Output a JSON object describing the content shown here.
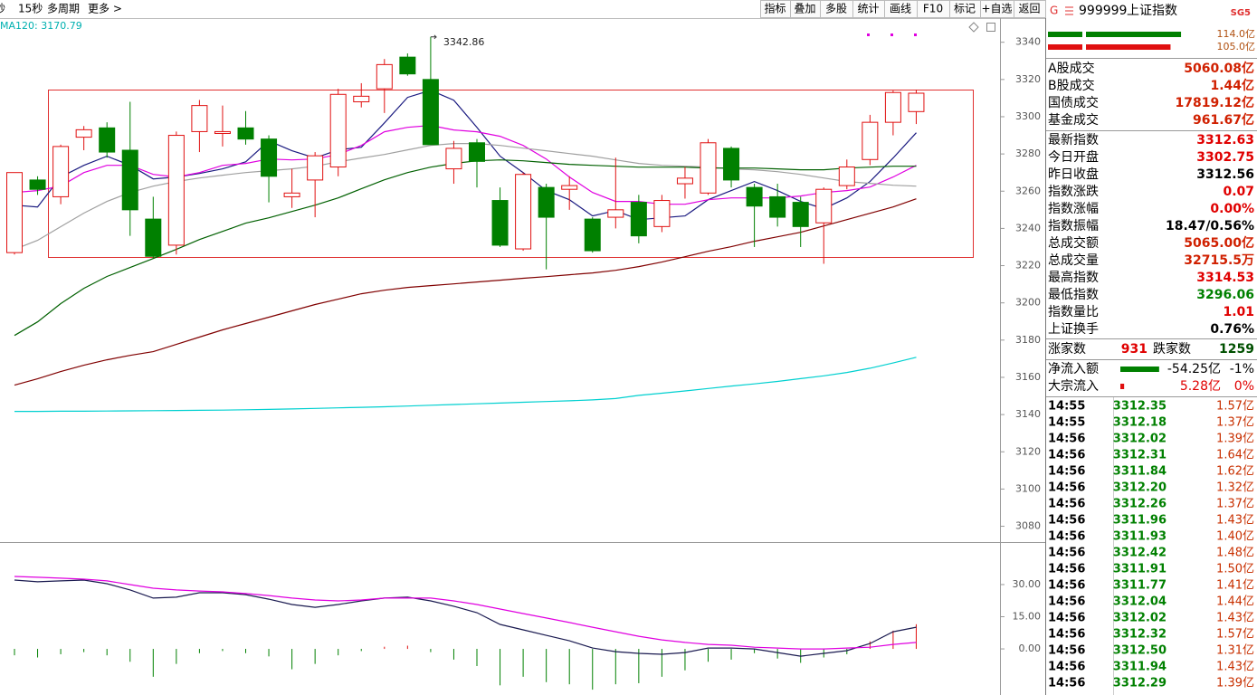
{
  "chart_data": [
    {
      "type": "candlestick",
      "ma_label": "MA120: 3170.79",
      "ylim": [
        3072,
        3352
      ],
      "yticks": [
        3080,
        3100,
        3120,
        3140,
        3160,
        3180,
        3200,
        3220,
        3240,
        3260,
        3280,
        3300,
        3320,
        3340
      ],
      "grid": false,
      "up_color": "#e01010",
      "down_color": "#008000",
      "open": [
        3227,
        3266,
        3257,
        3289,
        3294,
        3282,
        3245,
        3231,
        3292,
        3291,
        3294,
        3288,
        3257,
        3266,
        3273,
        3308,
        3315,
        3332,
        3320,
        3272,
        3286,
        3255,
        3229,
        3262,
        3261,
        3245,
        3246,
        3254,
        3241,
        3264,
        3259,
        3283,
        3262,
        3257,
        3254,
        3243,
        3263,
        3277,
        3297,
        3302.75
      ],
      "high": [
        3270,
        3268,
        3285,
        3295,
        3297,
        3308,
        3257,
        3292,
        3309,
        3306,
        3303,
        3290,
        3272,
        3281,
        3315,
        3318,
        3331,
        3334,
        3342.86,
        3287,
        3288,
        3262,
        3270,
        3264,
        3268,
        3246,
        3278,
        3258,
        3258,
        3273,
        3288,
        3284,
        3264,
        3264,
        3257,
        3262,
        3277,
        3301,
        3314,
        3314.53
      ],
      "low": [
        3226,
        3258,
        3253,
        3282,
        3278,
        3236,
        3224,
        3226,
        3281,
        3284,
        3285,
        3254,
        3251,
        3246,
        3268,
        3305,
        3302,
        3322,
        3285,
        3264,
        3262,
        3230,
        3228,
        3218,
        3250,
        3227,
        3240,
        3232,
        3238,
        3256,
        3258,
        3262,
        3230,
        3241,
        3230,
        3221,
        3261,
        3274,
        3290,
        3296.06
      ],
      "close": [
        3270,
        3261,
        3284,
        3293,
        3281,
        3250,
        3225,
        3290,
        3306,
        3292,
        3288,
        3268,
        3259,
        3279,
        3312,
        3311,
        3328,
        3323,
        3285,
        3283,
        3276,
        3231,
        3269,
        3246,
        3263,
        3228,
        3250,
        3236,
        3255,
        3267,
        3286,
        3266,
        3252,
        3246,
        3241,
        3261,
        3273,
        3297,
        3313,
        3312.63
      ],
      "lines": [
        {
          "color": "#1a1a80",
          "values": [
            3252.5,
            3251.5,
            3267.6,
            3273.9,
            3278.8,
            3273.9,
            3266.6,
            3267.6,
            3269.5,
            3272,
            3275.8,
            3287,
            3281.7,
            3277.8,
            3282.2,
            3283.6,
            3296.7,
            3310.4,
            3314.2,
            3308.9,
            3294.3,
            3278.8,
            3270,
            3260.3,
            3255.4,
            3246.7,
            3249.6,
            3244.7,
            3245.7,
            3246.7,
            3255.4,
            3260.3,
            3265.2,
            3260.3,
            3254.5,
            3250.6,
            3256.4,
            3265.2,
            3277.8,
            3291.4
          ]
        },
        {
          "color": "#e000e0",
          "values": [
            3259.3,
            3260.3,
            3262.7,
            3270,
            3273.9,
            3273.9,
            3269,
            3267.6,
            3270,
            3273.9,
            3274.9,
            3277.3,
            3276.8,
            3277.3,
            3279.7,
            3284.6,
            3291.9,
            3294.3,
            3295.3,
            3292.9,
            3291.9,
            3289.5,
            3284.6,
            3277.3,
            3267.6,
            3259.3,
            3254.5,
            3254.5,
            3253,
            3253,
            3255.4,
            3256.4,
            3256.4,
            3256.4,
            3257.4,
            3259.3,
            3260.3,
            3262.2,
            3267.6,
            3273.9
          ]
        },
        {
          "color": "#a0a0a0",
          "values": [
            3228.7,
            3233.6,
            3240.9,
            3248.2,
            3254.5,
            3259.3,
            3262.7,
            3265.2,
            3267.1,
            3268.6,
            3270,
            3271,
            3272,
            3273.4,
            3275.8,
            3277.8,
            3279.7,
            3282.2,
            3284.6,
            3285.6,
            3285.6,
            3284.6,
            3283.1,
            3281.7,
            3280.2,
            3278.8,
            3276.8,
            3274.9,
            3273.9,
            3273.4,
            3272.9,
            3272,
            3271.5,
            3270.5,
            3269,
            3267.1,
            3265.2,
            3264.2,
            3263.2,
            3262.7
          ]
        },
        {
          "color": "#006000",
          "values": [
            3182.5,
            3189.8,
            3199.6,
            3207.8,
            3214.2,
            3219,
            3223.8,
            3228.7,
            3234,
            3238.4,
            3242.8,
            3245.7,
            3249.1,
            3252.5,
            3256.4,
            3261.3,
            3266.1,
            3270,
            3272.9,
            3274.9,
            3276.3,
            3276.8,
            3276.3,
            3275.4,
            3274.4,
            3273.9,
            3273.4,
            3272.9,
            3272.9,
            3272.9,
            3272.4,
            3272.4,
            3272.4,
            3272,
            3271.5,
            3271.5,
            3272.4,
            3272.9,
            3273.4,
            3273.4
          ]
        },
        {
          "color": "#800000",
          "values": [
            3155.8,
            3159.2,
            3163.1,
            3166.5,
            3169.4,
            3171.8,
            3173.8,
            3177.7,
            3181.6,
            3185.5,
            3188.9,
            3192.3,
            3195.7,
            3199.1,
            3202,
            3204.9,
            3206.8,
            3208.3,
            3209.3,
            3210.2,
            3211.2,
            3212.2,
            3213.2,
            3214.1,
            3215.1,
            3216.1,
            3217.5,
            3219.5,
            3221.9,
            3224.8,
            3227.7,
            3230.2,
            3233.1,
            3235.5,
            3237.9,
            3241.3,
            3244.7,
            3248.1,
            3251.5,
            3255.9
          ]
        },
        {
          "color": "#00d0d0",
          "values": [
            3141.7,
            3141.7,
            3141.8,
            3141.8,
            3141.9,
            3142,
            3142.1,
            3142.2,
            3142.3,
            3142.4,
            3142.6,
            3142.8,
            3143,
            3143.3,
            3143.6,
            3143.9,
            3144.2,
            3144.6,
            3145,
            3145.4,
            3145.8,
            3146.2,
            3146.6,
            3147,
            3147.4,
            3147.9,
            3148.6,
            3150.3,
            3151.5,
            3152.7,
            3154,
            3155.3,
            3156.5,
            3157.8,
            3159.3,
            3160.8,
            3162.6,
            3164.9,
            3167.7,
            3170.79
          ]
        }
      ]
    },
    {
      "type": "macd",
      "ylim": [
        -21.5,
        49.4
      ],
      "yticks": [
        {
          "value": 0,
          "label": "0.00"
        },
        {
          "value": 15,
          "label": "15.00"
        },
        {
          "value": 30,
          "label": "30.00"
        }
      ],
      "up_color": "#e01010",
      "down_color": "#008000",
      "lines": [
        {
          "color": "#1a1a50",
          "values": [
            32.1,
            31.3,
            31.7,
            32.1,
            30.4,
            27.5,
            23.7,
            24.1,
            26.2,
            26.2,
            25.3,
            23.2,
            20.7,
            19.4,
            20.7,
            22.4,
            23.7,
            24.1,
            22.4,
            19.9,
            16.9,
            11.4,
            8.9,
            6.3,
            3.8,
            0.4,
            -1.3,
            -2.1,
            -2.5,
            -1.7,
            0.4,
            0.4,
            0,
            -1.7,
            -3.4,
            -2.1,
            -0.8,
            2.5,
            8,
            10.1
          ]
        },
        {
          "color": "#e000e0",
          "values": [
            33.8,
            33.4,
            33,
            32.5,
            31.7,
            30,
            28.3,
            27.5,
            27,
            26.6,
            25.8,
            24.9,
            23.7,
            22.8,
            22.4,
            22.8,
            23.7,
            23.7,
            23.7,
            22.4,
            20.7,
            18.6,
            16.5,
            14.4,
            12.3,
            10.1,
            8,
            5.9,
            4.2,
            3,
            2.1,
            1.7,
            0.8,
            0.4,
            0,
            0,
            0.4,
            0.8,
            2.1,
            3
          ]
        }
      ],
      "bars": [
        -3,
        -4,
        -2.5,
        -1.5,
        -3,
        -6,
        -13,
        -7,
        -2,
        -1,
        -2,
        -3.5,
        -9.5,
        -7,
        -3,
        -1,
        1,
        1.5,
        -1.5,
        -5,
        -8,
        -17,
        -13,
        -15.5,
        -16.5,
        -19,
        -16.5,
        -16,
        -13,
        -10,
        -6,
        -5,
        -2,
        -4.5,
        -6.5,
        -4,
        -2.5,
        3.5,
        8.5,
        11.5
      ]
    }
  ],
  "toolbar": {
    "left": [
      "秒",
      "15秒",
      "多周期",
      "更多 >"
    ],
    "right": [
      "指标",
      "叠加",
      "多股",
      "统计",
      "画线",
      "F10",
      "标记",
      "+自选",
      "返回"
    ]
  },
  "panel": {
    "badge": "G",
    "code": "999999",
    "name": "上证指数",
    "tag": "SG5",
    "flow_bars": [
      {
        "value": 114.0,
        "label": "114.0亿",
        "color": "#008000"
      },
      {
        "value": 105.0,
        "label": "105.0亿",
        "color": "#e01010"
      }
    ],
    "stats": [
      {
        "label": "A股成交",
        "value": "5060.08亿",
        "color": "#d02000"
      },
      {
        "label": "B股成交",
        "value": "1.44亿",
        "color": "#d02000"
      },
      {
        "label": "国债成交",
        "value": "17819.12亿",
        "color": "#d02000"
      },
      {
        "label": "基金成交",
        "value": "961.67亿",
        "color": "#d02000"
      }
    ],
    "quote": [
      {
        "label": "最新指数",
        "value": "3312.63",
        "color": "#e00000"
      },
      {
        "label": "今日开盘",
        "value": "3302.75",
        "color": "#e00000"
      },
      {
        "label": "昨日收盘",
        "value": "3312.56",
        "color": "#000000"
      },
      {
        "label": "指数涨跌",
        "value": "0.07",
        "color": "#e00000"
      },
      {
        "label": "指数涨幅",
        "value": "0.00%",
        "color": "#e00000"
      },
      {
        "label": "指数振幅",
        "value": "18.47/0.56%",
        "color": "#000000"
      },
      {
        "label": "总成交额",
        "value": "5065.00亿",
        "color": "#d02000"
      },
      {
        "label": "总成交量",
        "value": "32715.5万",
        "color": "#d02000"
      },
      {
        "label": "最高指数",
        "value": "3314.53",
        "color": "#e00000"
      },
      {
        "label": "最低指数",
        "value": "3296.06",
        "color": "#008000"
      },
      {
        "label": "指数量比",
        "value": "1.01",
        "color": "#e00000"
      },
      {
        "label": "上证换手",
        "value": "0.76%",
        "color": "#000000"
      }
    ],
    "breadth": {
      "up_label": "涨家数",
      "up": "931",
      "down_label": "跌家数",
      "down": "1259"
    },
    "flows": [
      {
        "label": "净流入额",
        "value": -54.25,
        "value_label": "-54.25亿",
        "pct": "-1%",
        "color": "#008000",
        "text_color": "#000000"
      },
      {
        "label": "大宗流入",
        "value": 5.28,
        "value_label": "5.28亿",
        "pct": "0%",
        "color": "#e01010",
        "text_color": "#e00000"
      }
    ],
    "ticks": [
      [
        "14:55",
        "3312.35",
        "1.57亿"
      ],
      [
        "14:55",
        "3312.18",
        "1.37亿"
      ],
      [
        "14:56",
        "3312.02",
        "1.39亿"
      ],
      [
        "14:56",
        "3312.31",
        "1.64亿"
      ],
      [
        "14:56",
        "3311.84",
        "1.62亿"
      ],
      [
        "14:56",
        "3312.20",
        "1.32亿"
      ],
      [
        "14:56",
        "3312.26",
        "1.37亿"
      ],
      [
        "14:56",
        "3311.96",
        "1.43亿"
      ],
      [
        "14:56",
        "3311.93",
        "1.40亿"
      ],
      [
        "14:56",
        "3312.42",
        "1.48亿"
      ],
      [
        "14:56",
        "3311.91",
        "1.50亿"
      ],
      [
        "14:56",
        "3311.77",
        "1.41亿"
      ],
      [
        "14:56",
        "3312.04",
        "1.44亿"
      ],
      [
        "14:56",
        "3312.02",
        "1.43亿"
      ],
      [
        "14:56",
        "3312.32",
        "1.57亿"
      ],
      [
        "14:56",
        "3312.50",
        "1.31亿"
      ],
      [
        "14:56",
        "3311.94",
        "1.43亿"
      ],
      [
        "14:56",
        "3312.29",
        "1.39亿"
      ]
    ]
  }
}
